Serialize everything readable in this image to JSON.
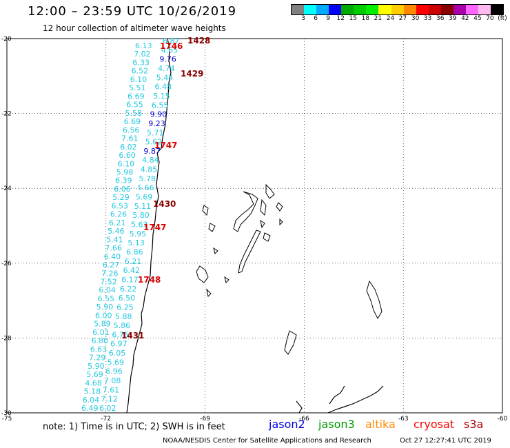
{
  "header": {
    "title": "12:00 – 23:59 UTC 10/26/2019",
    "subtitle": "12 hour collection of altimeter wave heights"
  },
  "legend": {
    "colors": [
      "#808080",
      "#00ffff",
      "#00aaff",
      "#0000ff",
      "#00aa00",
      "#00cc00",
      "#00ee00",
      "#ffff00",
      "#ffcc00",
      "#ff8800",
      "#ff0000",
      "#cc0000",
      "#880000",
      "#aa00aa",
      "#ff66ff",
      "#ffbbee",
      "#000000"
    ],
    "labels": [
      "3",
      "6",
      "9",
      "12",
      "15",
      "18",
      "21",
      "24",
      "27",
      "30",
      "33",
      "36",
      "39",
      "42",
      "45",
      "70",
      "(ft)"
    ]
  },
  "axes": {
    "lat_labels": [
      "-20",
      "-22",
      "-24",
      "-26",
      "-28",
      "-30"
    ],
    "lon_labels": [
      "-75",
      "-72",
      "-69",
      "-66",
      "-63",
      "-60"
    ]
  },
  "track_values": [
    {
      "text": "6.13",
      "color": "#22c8e0"
    },
    {
      "text": "7.02",
      "color": "#22c8e0"
    },
    {
      "text": "6.33",
      "color": "#22c8e0"
    },
    {
      "text": "6.52",
      "color": "#22c8e0"
    },
    {
      "text": "6.10",
      "color": "#22c8e0"
    },
    {
      "text": "5.51",
      "color": "#22c8e0"
    },
    {
      "text": "6.69",
      "color": "#22c8e0"
    },
    {
      "text": "6.55",
      "color": "#22c8e0"
    },
    {
      "text": "5.58",
      "color": "#22c8e0"
    },
    {
      "text": "6.69",
      "color": "#22c8e0"
    },
    {
      "text": "6.56",
      "color": "#22c8e0"
    },
    {
      "text": "7.61",
      "color": "#22c8e0"
    },
    {
      "text": "6.02",
      "color": "#22c8e0"
    },
    {
      "text": "6.60",
      "color": "#22c8e0"
    },
    {
      "text": "6.10",
      "color": "#22c8e0"
    },
    {
      "text": "5.98",
      "color": "#22c8e0"
    },
    {
      "text": "6.39",
      "color": "#22c8e0"
    },
    {
      "text": "6.06",
      "color": "#22c8e0"
    },
    {
      "text": "5.29",
      "color": "#22c8e0"
    },
    {
      "text": "6.53",
      "color": "#22c8e0"
    },
    {
      "text": "6.26",
      "color": "#22c8e0"
    },
    {
      "text": "6.21",
      "color": "#22c8e0"
    },
    {
      "text": "5.46",
      "color": "#22c8e0"
    },
    {
      "text": "5.41",
      "color": "#22c8e0"
    },
    {
      "text": "7.66",
      "color": "#22c8e0"
    },
    {
      "text": "6.40",
      "color": "#22c8e0"
    },
    {
      "text": "6.27",
      "color": "#22c8e0"
    },
    {
      "text": "7.26",
      "color": "#22c8e0"
    },
    {
      "text": "7.52",
      "color": "#22c8e0"
    },
    {
      "text": "6.04",
      "color": "#22c8e0"
    },
    {
      "text": "6.55",
      "color": "#22c8e0"
    },
    {
      "text": "5.90",
      "color": "#22c8e0"
    },
    {
      "text": "6.00",
      "color": "#22c8e0"
    },
    {
      "text": "5.89",
      "color": "#22c8e0"
    },
    {
      "text": "6.01",
      "color": "#22c8e0"
    },
    {
      "text": "6.80",
      "color": "#22c8e0"
    },
    {
      "text": "6.63",
      "color": "#22c8e0"
    },
    {
      "text": "7.29",
      "color": "#22c8e0"
    },
    {
      "text": "5.90",
      "color": "#22c8e0"
    },
    {
      "text": "5.69",
      "color": "#22c8e0"
    },
    {
      "text": "4.68",
      "color": "#22c8e0"
    },
    {
      "text": "5.18",
      "color": "#22c8e0"
    },
    {
      "text": "6.04",
      "color": "#22c8e0"
    },
    {
      "text": "6.49",
      "color": "#22c8e0"
    },
    {
      "text": "6.87",
      "color": "#22c8e0"
    },
    {
      "text": "4.65",
      "color": "#22c8e0"
    },
    {
      "text": "9.76",
      "color": "#0000cc"
    },
    {
      "text": "4.74",
      "color": "#22c8e0"
    },
    {
      "text": "5.44",
      "color": "#22c8e0"
    },
    {
      "text": "6.48",
      "color": "#22c8e0"
    },
    {
      "text": "5.15",
      "color": "#22c8e0"
    },
    {
      "text": "6.55",
      "color": "#22c8e0"
    },
    {
      "text": "9.90",
      "color": "#0000cc"
    },
    {
      "text": "9.23",
      "color": "#0000cc"
    },
    {
      "text": "5.71",
      "color": "#22c8e0"
    },
    {
      "text": "5.62",
      "color": "#22c8e0"
    },
    {
      "text": "9.87",
      "color": "#0000cc"
    },
    {
      "text": "4.84",
      "color": "#22c8e0"
    },
    {
      "text": "4.85",
      "color": "#22c8e0"
    },
    {
      "text": "5.78",
      "color": "#22c8e0"
    },
    {
      "text": "5.66",
      "color": "#22c8e0"
    },
    {
      "text": "5.69",
      "color": "#22c8e0"
    },
    {
      "text": "5.11",
      "color": "#22c8e0"
    },
    {
      "text": "5.80",
      "color": "#22c8e0"
    },
    {
      "text": "5.63",
      "color": "#22c8e0"
    },
    {
      "text": "5.95",
      "color": "#22c8e0"
    },
    {
      "text": "5.13",
      "color": "#22c8e0"
    },
    {
      "text": "6.86",
      "color": "#22c8e0"
    },
    {
      "text": "6.21",
      "color": "#22c8e0"
    },
    {
      "text": "6.42",
      "color": "#22c8e0"
    },
    {
      "text": "6.17",
      "color": "#22c8e0"
    },
    {
      "text": "6.22",
      "color": "#22c8e0"
    },
    {
      "text": "6.50",
      "color": "#22c8e0"
    },
    {
      "text": "6.25",
      "color": "#22c8e0"
    },
    {
      "text": "5.88",
      "color": "#22c8e0"
    },
    {
      "text": "5.86",
      "color": "#22c8e0"
    },
    {
      "text": "6.75",
      "color": "#22c8e0"
    },
    {
      "text": "6.97",
      "color": "#22c8e0"
    },
    {
      "text": "6.05",
      "color": "#22c8e0"
    },
    {
      "text": "5.69",
      "color": "#22c8e0"
    },
    {
      "text": "6.96",
      "color": "#22c8e0"
    },
    {
      "text": "7.08",
      "color": "#22c8e0"
    },
    {
      "text": "7.61",
      "color": "#22c8e0"
    },
    {
      "text": "7.12",
      "color": "#22c8e0"
    },
    {
      "text": "6.02",
      "color": "#22c8e0"
    }
  ],
  "time_labels": [
    {
      "text": "1428",
      "color": "#880000"
    },
    {
      "text": "1746",
      "color": "#dd0000"
    },
    {
      "text": "1429",
      "color": "#880000"
    },
    {
      "text": "1747",
      "color": "#dd0000"
    },
    {
      "text": "1430",
      "color": "#880000"
    },
    {
      "text": "1747",
      "color": "#dd0000"
    },
    {
      "text": "1748",
      "color": "#dd0000"
    },
    {
      "text": "1431",
      "color": "#880000"
    }
  ],
  "footer": {
    "note": "note:  1) Time is in UTC;  2) SWH is in feet",
    "satellites": [
      {
        "name": "jason2",
        "color": "#0000dd"
      },
      {
        "name": "jason3",
        "color": "#009900"
      },
      {
        "name": "altika",
        "color": "#ff8800"
      },
      {
        "name": "cryosat",
        "color": "#ff0000"
      },
      {
        "name": "s3a",
        "color": "#aa0000"
      }
    ],
    "credit": "NOAA/NESDIS Center for Satellite Applications and Research",
    "timestamp": "Oct 27 12:27:41 UTC 2019"
  }
}
